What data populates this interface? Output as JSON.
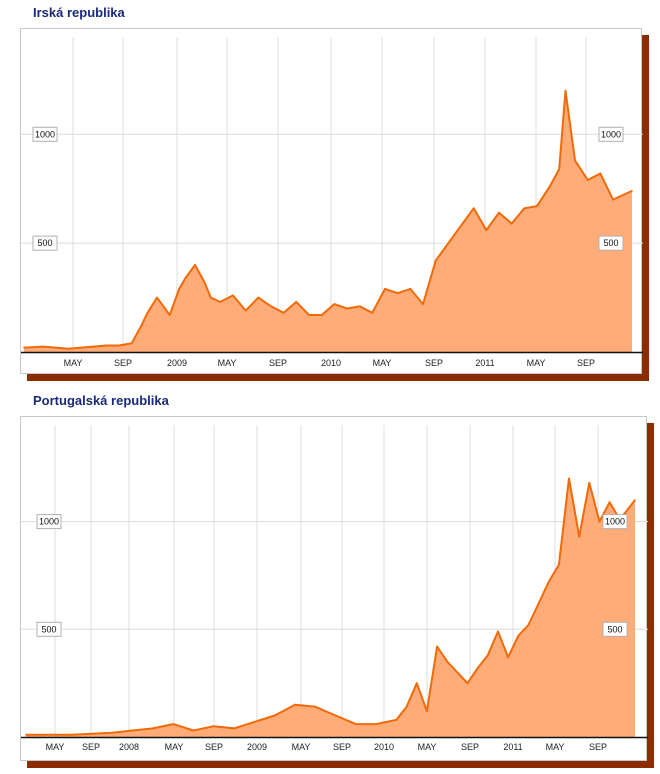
{
  "chart_data": [
    {
      "type": "area",
      "title": "Irská republika",
      "xlabel": "",
      "ylabel": "",
      "x_tick_labels": [
        "MAY",
        "SEP",
        "2009",
        "MAY",
        "SEP",
        "2010",
        "MAY",
        "SEP",
        "2011",
        "MAY",
        "SEP"
      ],
      "x_range": [
        "2008-01",
        "2011-12"
      ],
      "ylim": [
        0,
        1300
      ],
      "y_tick_labels": [
        "500",
        "1000"
      ],
      "y_ticks": [
        500,
        1000
      ],
      "grid": true,
      "colors": {
        "line": "#f06a0a",
        "fill": "#ffac78"
      },
      "series": [
        {
          "x": [
            "2008-01",
            "2008-02",
            "2008-03",
            "2008-04",
            "2008-05",
            "2008-06",
            "2008-07",
            "2008-08",
            "2008-09",
            "2008-10",
            "2008-10",
            "2008-11",
            "2008-12",
            "2009-01",
            "2009-01",
            "2009-02",
            "2009-03",
            "2009-03",
            "2009-04",
            "2009-05",
            "2009-06",
            "2009-07",
            "2009-08",
            "2009-09",
            "2009-10",
            "2009-11",
            "2009-12",
            "2010-01",
            "2010-02",
            "2010-03",
            "2010-04",
            "2010-05",
            "2010-06",
            "2010-07",
            "2010-08",
            "2010-09",
            "2010-10",
            "2010-11",
            "2010-11",
            "2010-12",
            "2011-01",
            "2011-02",
            "2011-03",
            "2011-04",
            "2011-05",
            "2011-06",
            "2011-07",
            "2011-07",
            "2011-08",
            "2011-09",
            "2011-10",
            "2011-11",
            "2011-12"
          ],
          "values": [
            20,
            25,
            20,
            15,
            20,
            25,
            30,
            30,
            40,
            120,
            180,
            250,
            170,
            290,
            340,
            400,
            320,
            250,
            230,
            260,
            190,
            250,
            210,
            180,
            230,
            170,
            170,
            220,
            200,
            210,
            180,
            290,
            270,
            290,
            220,
            420,
            500,
            560,
            600,
            660,
            560,
            640,
            590,
            660,
            670,
            760,
            840,
            1200,
            880,
            790,
            820,
            700,
            740
          ]
        }
      ]
    },
    {
      "type": "area",
      "title": "Portugalská republika",
      "xlabel": "",
      "ylabel": "",
      "x_tick_labels": [
        "MAY",
        "SEP",
        "2008",
        "MAY",
        "SEP",
        "2009",
        "MAY",
        "SEP",
        "2010",
        "MAY",
        "SEP",
        "2011",
        "MAY",
        "SEP"
      ],
      "x_range": [
        "2007-01",
        "2011-12"
      ],
      "ylim": [
        0,
        1300
      ],
      "y_tick_labels": [
        "500",
        "1000"
      ],
      "y_ticks": [
        500,
        1000
      ],
      "grid": true,
      "colors": {
        "line": "#f06a0a",
        "fill": "#ffac78"
      },
      "series": [
        {
          "x": [
            "2007-01",
            "2007-03",
            "2007-05",
            "2007-07",
            "2007-09",
            "2007-11",
            "2008-01",
            "2008-03",
            "2008-05",
            "2008-07",
            "2008-09",
            "2008-11",
            "2009-01",
            "2009-03",
            "2009-05",
            "2009-07",
            "2009-09",
            "2009-11",
            "2010-01",
            "2010-02",
            "2010-03",
            "2010-04",
            "2010-05",
            "2010-06",
            "2010-07",
            "2010-08",
            "2010-09",
            "2010-10",
            "2010-11",
            "2010-12",
            "2011-01",
            "2011-02",
            "2011-03",
            "2011-04",
            "2011-05",
            "2011-06",
            "2011-07",
            "2011-08",
            "2011-09",
            "2011-10",
            "2011-11",
            "2011-12"
          ],
          "values": [
            10,
            10,
            10,
            15,
            20,
            30,
            40,
            60,
            30,
            50,
            40,
            70,
            100,
            150,
            140,
            100,
            60,
            60,
            80,
            140,
            250,
            120,
            420,
            350,
            300,
            250,
            320,
            380,
            490,
            370,
            470,
            520,
            620,
            720,
            800,
            1200,
            930,
            1180,
            1000,
            1090,
            1010,
            1100
          ]
        }
      ]
    }
  ]
}
